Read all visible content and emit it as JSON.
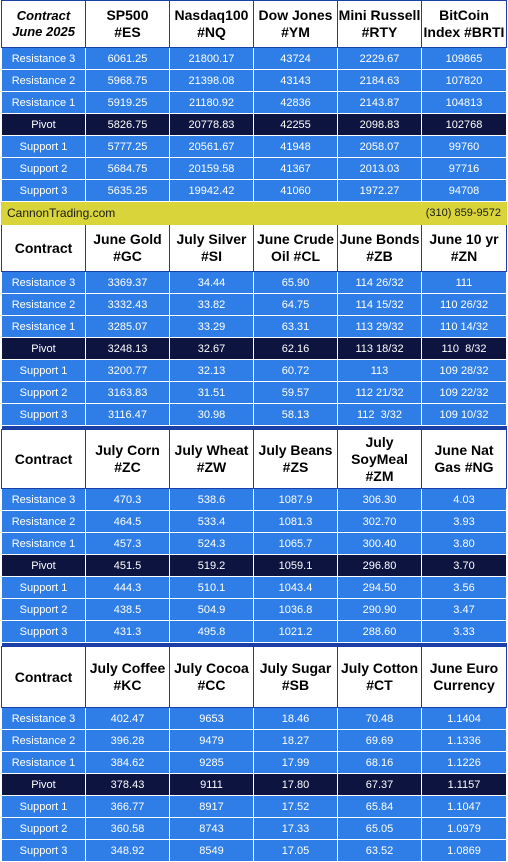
{
  "levels": [
    "Resistance 3",
    "Resistance 2",
    "Resistance 1",
    "Pivot",
    "Support 1",
    "Support 2",
    "Support 3"
  ],
  "contact": {
    "site": "CannonTrading.com",
    "phone": "(310) 859-9572"
  },
  "sections": [
    {
      "corner": [
        "Contract",
        "June 2025"
      ],
      "corner_italic": true,
      "headers": [
        [
          "SP500",
          "#ES"
        ],
        [
          "Nasdaq100",
          "#NQ"
        ],
        [
          "Dow Jones",
          "#YM"
        ],
        [
          "Mini Russell",
          "#RTY"
        ],
        [
          "BitCoin",
          "Index #BRTI"
        ]
      ],
      "rows": [
        [
          "6061.25",
          "21800.17",
          "43724",
          "2229.67",
          "109865"
        ],
        [
          "5968.75",
          "21398.08",
          "43143",
          "2184.63",
          "107820"
        ],
        [
          "5919.25",
          "21180.92",
          "42836",
          "2143.87",
          "104813"
        ],
        [
          "5826.75",
          "20778.83",
          "42255",
          "2098.83",
          "102768"
        ],
        [
          "5777.25",
          "20561.67",
          "41948",
          "2058.07",
          "99760"
        ],
        [
          "5684.75",
          "20159.58",
          "41367",
          "2013.03",
          "97716"
        ],
        [
          "5635.25",
          "19942.42",
          "41060",
          "1972.27",
          "94708"
        ]
      ]
    },
    {
      "corner": [
        "Contract"
      ],
      "corner_italic": false,
      "headers": [
        [
          "June Gold",
          "#GC"
        ],
        [
          "July Silver",
          "#SI"
        ],
        [
          "June Crude",
          "Oil #CL"
        ],
        [
          "June Bonds",
          "#ZB"
        ],
        [
          "June 10 yr",
          "#ZN"
        ]
      ],
      "rows": [
        [
          "3369.37",
          "34.44",
          "65.90",
          "114 26/32",
          "111"
        ],
        [
          "3332.43",
          "33.82",
          "64.75",
          "114 15/32",
          "110 26/32"
        ],
        [
          "3285.07",
          "33.29",
          "63.31",
          "113 29/32",
          "110 14/32"
        ],
        [
          "3248.13",
          "32.67",
          "62.16",
          "113 18/32",
          "110  8/32"
        ],
        [
          "3200.77",
          "32.13",
          "60.72",
          "113",
          "109 28/32"
        ],
        [
          "3163.83",
          "31.51",
          "59.57",
          "112 21/32",
          "109 22/32"
        ],
        [
          "3116.47",
          "30.98",
          "58.13",
          "112  3/32",
          "109 10/32"
        ]
      ]
    },
    {
      "corner": [
        "Contract"
      ],
      "corner_italic": false,
      "headers": [
        [
          "July Corn",
          "#ZC"
        ],
        [
          "July  Wheat",
          "#ZW"
        ],
        [
          "July Beans",
          "#ZS"
        ],
        [
          "July",
          "SoyMeal",
          "#ZM"
        ],
        [
          "June Nat",
          "Gas #NG"
        ]
      ],
      "rows": [
        [
          "470.3",
          "538.6",
          "1087.9",
          "306.30",
          "4.03"
        ],
        [
          "464.5",
          "533.4",
          "1081.3",
          "302.70",
          "3.93"
        ],
        [
          "457.3",
          "524.3",
          "1065.7",
          "300.40",
          "3.80"
        ],
        [
          "451.5",
          "519.2",
          "1059.1",
          "296.80",
          "3.70"
        ],
        [
          "444.3",
          "510.1",
          "1043.4",
          "294.50",
          "3.56"
        ],
        [
          "438.5",
          "504.9",
          "1036.8",
          "290.90",
          "3.47"
        ],
        [
          "431.3",
          "495.8",
          "1021.2",
          "288.60",
          "3.33"
        ]
      ]
    },
    {
      "corner": [
        "Contract"
      ],
      "corner_italic": false,
      "headers": [
        [
          "July Coffee",
          "#KC"
        ],
        [
          "July Cocoa",
          "#CC"
        ],
        [
          "July Sugar",
          "#SB"
        ],
        [
          "July Cotton",
          "#CT"
        ],
        [
          "June Euro",
          "Currency"
        ]
      ],
      "rows": [
        [
          "402.47",
          "9653",
          "18.46",
          "70.48",
          "1.1404"
        ],
        [
          "396.28",
          "9479",
          "18.27",
          "69.69",
          "1.1336"
        ],
        [
          "384.62",
          "9285",
          "17.99",
          "68.16",
          "1.1226"
        ],
        [
          "378.43",
          "9111",
          "17.80",
          "67.37",
          "1.1157"
        ],
        [
          "366.77",
          "8917",
          "17.52",
          "65.84",
          "1.1047"
        ],
        [
          "360.58",
          "8743",
          "17.33",
          "65.05",
          "1.0979"
        ],
        [
          "348.92",
          "8549",
          "17.05",
          "63.52",
          "1.0869"
        ]
      ]
    }
  ]
}
